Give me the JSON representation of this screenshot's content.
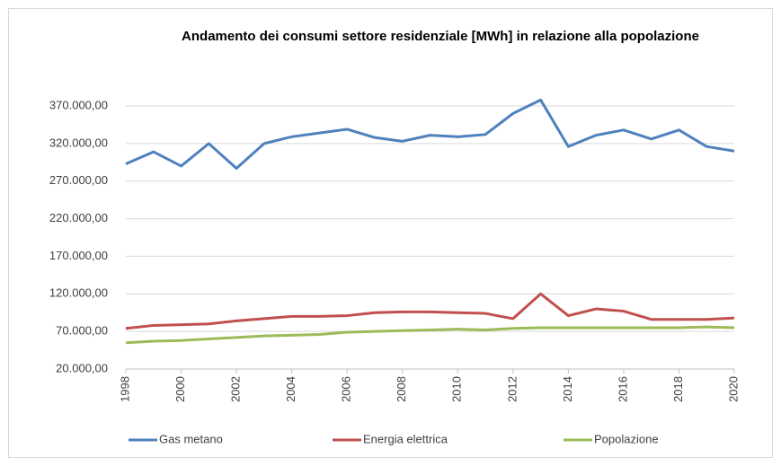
{
  "chart_data": {
    "type": "line",
    "title": "Andamento dei consumi settore residenziale [MWh] in relazione alla popolazione",
    "x": [
      1998,
      1999,
      2000,
      2001,
      2002,
      2003,
      2004,
      2005,
      2006,
      2007,
      2008,
      2009,
      2010,
      2011,
      2012,
      2013,
      2014,
      2015,
      2016,
      2017,
      2018,
      2019,
      2020
    ],
    "series": [
      {
        "name": "Gas metano",
        "color": "#4f81bd",
        "values": [
          293000,
          309000,
          290000,
          320000,
          287000,
          320000,
          329000,
          334000,
          339000,
          328000,
          323000,
          331000,
          329000,
          332000,
          360000,
          378000,
          316000,
          331000,
          338000,
          326000,
          338000,
          316000,
          310000
        ]
      },
      {
        "name": "Energia elettrica",
        "color": "#c0504d",
        "values": [
          74000,
          78000,
          79000,
          80000,
          84000,
          87000,
          90000,
          90000,
          91000,
          95000,
          96000,
          96000,
          95000,
          94000,
          87000,
          120000,
          91000,
          100000,
          97000,
          86000,
          86000,
          86000,
          88000
        ]
      },
      {
        "name": "Popolazione",
        "color": "#9bbb59",
        "values": [
          55000,
          57000,
          58000,
          60000,
          62000,
          64000,
          65000,
          66000,
          69000,
          70000,
          71000,
          72000,
          73000,
          72000,
          74000,
          75000,
          75000,
          75000,
          75000,
          75000,
          75000,
          76000,
          75000
        ]
      }
    ],
    "xlim": [
      1998,
      2020
    ],
    "xticks": [
      1998,
      2000,
      2002,
      2004,
      2006,
      2008,
      2010,
      2012,
      2014,
      2016,
      2018,
      2020
    ],
    "ylim": [
      20000,
      380000
    ],
    "yticks": [
      {
        "value": 20000,
        "label": "20.000,00"
      },
      {
        "value": 70000,
        "label": "70.000,00"
      },
      {
        "value": 120000,
        "label": "120.000,00"
      },
      {
        "value": 170000,
        "label": "170.000,00"
      },
      {
        "value": 220000,
        "label": "220.000,00"
      },
      {
        "value": 270000,
        "label": "270.000,00"
      },
      {
        "value": 320000,
        "label": "320.000,00"
      },
      {
        "value": 370000,
        "label": "370.000,00"
      }
    ],
    "grid": true,
    "legend": "bottom"
  }
}
